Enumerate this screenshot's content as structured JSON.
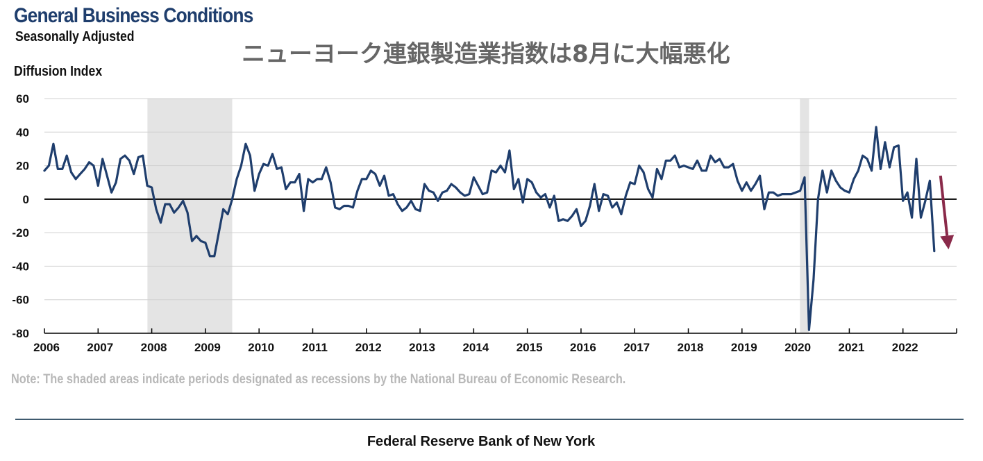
{
  "header": {
    "title": "General Business Conditions",
    "subtitle": "Seasonally Adjusted",
    "jp_headline": "ニューヨーク連銀製造業指数は8月に大幅悪化"
  },
  "note": "Note: The shaded areas indicate periods designated as recessions by the National Bureau of Economic Research.",
  "footer": "Federal Reserve Bank of New York",
  "colors": {
    "line": "#1f3e6d",
    "arrow": "#8a2a4a",
    "recession": "#e4e4e4",
    "grid": "#d0d0d0"
  },
  "chart_data": {
    "type": "line",
    "ylabel": "Diffusion Index",
    "ylim": [
      -80,
      60
    ],
    "yticks": [
      "60",
      "40",
      "20",
      "0",
      "-20",
      "-40",
      "-60",
      "-80"
    ],
    "xlim": [
      2006,
      2023
    ],
    "xticks": [
      "2006",
      "2007",
      "2008",
      "2009",
      "2010",
      "2011",
      "2012",
      "2013",
      "2014",
      "2015",
      "2016",
      "2017",
      "2018",
      "2019",
      "2020",
      "2021",
      "2022"
    ],
    "grid": true,
    "recessions": [
      [
        2007.92,
        2009.5
      ],
      [
        2020.08,
        2020.25
      ]
    ],
    "annotation": {
      "type": "arrow",
      "direction": "down",
      "x_start": 2022.7,
      "y_start": 14,
      "x_end": 2022.85,
      "y_end": -30
    },
    "series": [
      {
        "values": [
          17,
          20,
          33,
          18,
          18,
          26,
          16,
          12,
          15,
          18,
          22,
          20,
          8,
          24,
          14,
          4,
          10,
          24,
          26,
          23,
          15,
          25,
          26,
          8,
          7,
          -6,
          -14,
          -3,
          -3,
          -8,
          -5,
          -1,
          -8,
          -25,
          -22,
          -25,
          -26,
          -34,
          -34,
          -20,
          -6,
          -9,
          0,
          12,
          20,
          33,
          26,
          5,
          15,
          21,
          20,
          27,
          18,
          19,
          6,
          10,
          10,
          15,
          -7,
          12,
          10,
          12,
          12,
          19,
          10,
          -5,
          -6,
          -4,
          -4,
          -5,
          5,
          12,
          12,
          17,
          15,
          8,
          14,
          2,
          3,
          -3,
          -7,
          -5,
          -1,
          -6,
          -7,
          9,
          5,
          4,
          -1,
          4,
          5,
          9,
          7,
          4,
          2,
          3,
          13,
          8,
          3,
          4,
          17,
          16,
          20,
          16,
          29,
          6,
          12,
          -2,
          12,
          10,
          4,
          1,
          3,
          -5,
          2,
          -13,
          -12,
          -13,
          -10,
          -6,
          -16,
          -13,
          -4,
          9,
          -7,
          3,
          2,
          -5,
          -2,
          -9,
          2,
          10,
          9,
          20,
          16,
          6,
          1,
          18,
          12,
          23,
          23,
          26,
          19,
          20,
          19,
          18,
          23,
          17,
          17,
          26,
          22,
          24,
          19,
          19,
          21,
          11,
          5,
          10,
          5,
          9,
          14,
          -6,
          4,
          4,
          2,
          3,
          3,
          3,
          4,
          5,
          13,
          -78,
          -48,
          0,
          17,
          4,
          17,
          11,
          7,
          5,
          4,
          12,
          17,
          26,
          24,
          17,
          43,
          18,
          34,
          19,
          31,
          32,
          -1,
          4,
          -11,
          24,
          -11,
          -1,
          11,
          -31
        ]
      }
    ]
  }
}
